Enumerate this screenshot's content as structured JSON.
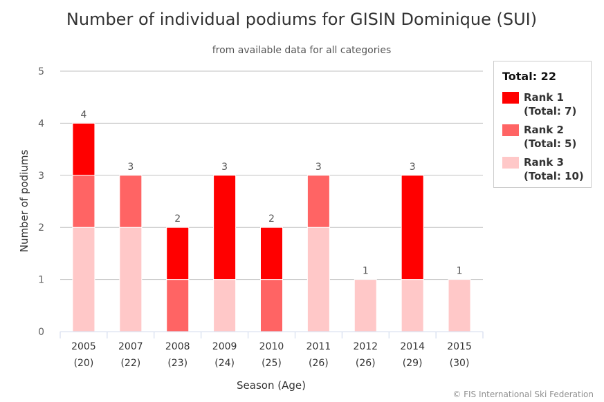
{
  "chart_data": {
    "type": "bar",
    "stacked": true,
    "title": "Number of individual podiums for GISIN Dominique (SUI)",
    "subtitle": "from available data for all categories",
    "xlabel": "Season (Age)",
    "ylabel": "Number of podiums",
    "ylim": [
      0,
      5
    ],
    "yticks": [
      0,
      1,
      2,
      3,
      4,
      5
    ],
    "grid": true,
    "categories": [
      {
        "season": "2005",
        "age": "(20)"
      },
      {
        "season": "2007",
        "age": "(22)"
      },
      {
        "season": "2008",
        "age": "(23)"
      },
      {
        "season": "2009",
        "age": "(24)"
      },
      {
        "season": "2010",
        "age": "(25)"
      },
      {
        "season": "2011",
        "age": "(26)"
      },
      {
        "season": "2012",
        "age": "(26)"
      },
      {
        "season": "2014",
        "age": "(29)"
      },
      {
        "season": "2015",
        "age": "(30)"
      }
    ],
    "series": [
      {
        "name": "Rank 3",
        "color": "#ffc8c8",
        "values": [
          2,
          2,
          0,
          1,
          0,
          2,
          1,
          1,
          1
        ]
      },
      {
        "name": "Rank 2",
        "color": "#ff6464",
        "values": [
          1,
          1,
          1,
          0,
          1,
          1,
          0,
          0,
          0
        ]
      },
      {
        "name": "Rank 1",
        "color": "#ff0000",
        "values": [
          1,
          0,
          1,
          2,
          1,
          0,
          0,
          2,
          0
        ]
      }
    ],
    "totals": [
      4,
      3,
      2,
      3,
      2,
      3,
      1,
      3,
      1
    ],
    "legend": {
      "placement": "top-right",
      "title": "Total: 22",
      "items": [
        {
          "name": "Rank 1",
          "total": "(Total: 7)",
          "color": "#ff0000"
        },
        {
          "name": "Rank 2",
          "total": "(Total: 5)",
          "color": "#ff6464"
        },
        {
          "name": "Rank 3",
          "total": "(Total: 10)",
          "color": "#ffc8c8"
        }
      ]
    },
    "credits": "© FIS International Ski Federation"
  }
}
